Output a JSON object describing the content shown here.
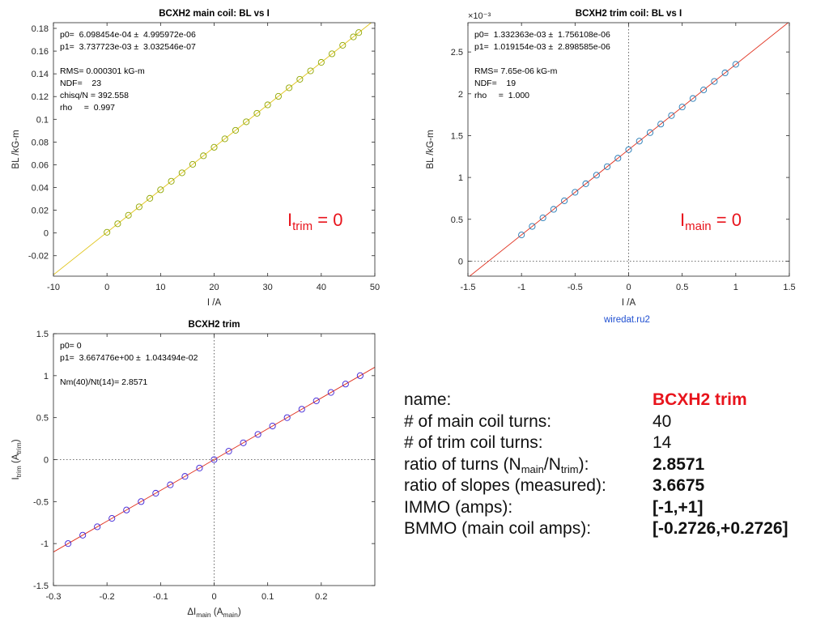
{
  "colors": {
    "yellow_fit": "#e0c419",
    "red_fit": "#e0301e",
    "blue_marker": "#1f77b4",
    "violet_marker": "#3a1fd6",
    "red_text": "#e8141c",
    "link_blue": "#1f4fd1"
  },
  "chart_data": [
    {
      "type": "scatter",
      "title": "BCXH2 main coil: BL vs I",
      "xlabel": "I /A",
      "ylabel": "BL /kG-m",
      "xlim": [
        -10,
        50
      ],
      "ylim": [
        -0.038,
        0.185
      ],
      "xticks": [
        -10,
        0,
        10,
        20,
        30,
        40,
        50
      ],
      "yticks": [
        -0.02,
        0,
        0.02,
        0.04,
        0.06,
        0.08,
        0.1,
        0.12,
        0.14,
        0.16,
        0.18
      ],
      "grid": false,
      "exponent_label": "",
      "show_zero_lines": false,
      "annotation_lines": [
        "p0=  6.098454e-04 ±  4.995972e-06",
        "p1=  3.737723e-03 ±  3.032546e-07",
        "",
        "RMS= 0.000301 kG-m",
        "NDF=    23",
        "chisq/N = 392.558",
        "rho     =  0.997"
      ],
      "big_label": {
        "main": "I",
        "sub": "trim",
        "rest": " = 0"
      },
      "fit": {
        "p0": 0.0006098454,
        "p1": 0.003737723,
        "color": "#e0c419"
      },
      "marker_color": "#8fa600",
      "x": [
        0,
        2,
        4,
        6,
        8,
        10,
        12,
        14,
        16,
        18,
        20,
        22,
        24,
        26,
        28,
        30,
        32,
        34,
        36,
        38,
        40,
        42,
        44,
        46,
        47
      ],
      "y": [
        0.0006,
        0.0081,
        0.0156,
        0.023,
        0.0305,
        0.038,
        0.0455,
        0.0529,
        0.0604,
        0.0679,
        0.0754,
        0.0828,
        0.0903,
        0.0978,
        0.1053,
        0.1127,
        0.1202,
        0.1277,
        0.1352,
        0.1426,
        0.1501,
        0.1576,
        0.1651,
        0.1725,
        0.1763
      ]
    },
    {
      "type": "scatter",
      "title": "BCXH2 trim coil: BL vs I",
      "xlabel": "I /A",
      "ylabel": "BL /kG-m",
      "xlim": [
        -1.5,
        1.5
      ],
      "ylim": [
        -0.18,
        2.85
      ],
      "xticks": [
        -1.5,
        -1,
        -0.5,
        0,
        0.5,
        1,
        1.5
      ],
      "yticks": [
        0,
        0.5,
        1,
        1.5,
        2,
        2.5
      ],
      "grid": false,
      "exponent_label": "×10⁻³",
      "show_zero_lines": true,
      "annotation_lines": [
        "p0=  1.332363e-03 ±  1.756108e-06",
        "p1=  1.019154e-03 ±  2.898585e-06",
        "",
        "RMS= 7.65e-06 kG-m",
        "NDF=    19",
        "rho     =  1.000"
      ],
      "big_label": {
        "main": "I",
        "sub": "main",
        "rest": " = 0"
      },
      "fit": {
        "p0": 1.332363,
        "p1": 1.019154,
        "color": "#e0301e"
      },
      "marker_color": "#1f77b4",
      "x": [
        -1,
        -0.9,
        -0.8,
        -0.7,
        -0.6,
        -0.5,
        -0.4,
        -0.3,
        -0.2,
        -0.1,
        0,
        0.1,
        0.2,
        0.3,
        0.4,
        0.5,
        0.6,
        0.7,
        0.8,
        0.9,
        1
      ],
      "y": [
        0.313,
        0.415,
        0.517,
        0.619,
        0.721,
        0.823,
        0.925,
        1.027,
        1.129,
        1.23,
        1.332,
        1.434,
        1.536,
        1.638,
        1.74,
        1.842,
        1.944,
        2.046,
        2.148,
        2.25,
        2.352
      ]
    },
    {
      "type": "scatter",
      "title": "BCXH2 trim",
      "xlabel": "ΔI_main (A_main)",
      "ylabel": "I_trim (A_trim)",
      "xlim": [
        -0.3,
        0.3
      ],
      "ylim": [
        -1.5,
        1.5
      ],
      "xticks": [
        -0.3,
        -0.2,
        -0.1,
        0,
        0.1,
        0.2
      ],
      "yticks": [
        -1.5,
        -1,
        -0.5,
        0,
        0.5,
        1,
        1.5
      ],
      "grid": false,
      "exponent_label": "",
      "show_zero_lines": true,
      "annotation_lines": [
        "p0= 0",
        "p1=  3.667476e+00 ±  1.043494e-02",
        "",
        "Nm(40)/Nt(14)= 2.8571"
      ],
      "big_label": null,
      "fit": {
        "p0": 0,
        "p1": 3.667476,
        "color": "#e0301e"
      },
      "marker_color": "#3a1fd6",
      "x": [
        -0.2726,
        -0.2453,
        -0.2181,
        -0.1908,
        -0.1636,
        -0.1363,
        -0.109,
        -0.0818,
        -0.0545,
        -0.0273,
        0,
        0.0273,
        0.0545,
        0.0818,
        0.109,
        0.1363,
        0.1636,
        0.1908,
        0.2181,
        0.2453,
        0.2726
      ],
      "y": [
        -1,
        -0.9,
        -0.8,
        -0.7,
        -0.6,
        -0.5,
        -0.4,
        -0.3,
        -0.2,
        -0.1,
        0,
        0.1,
        0.2,
        0.3,
        0.4,
        0.5,
        0.6,
        0.7,
        0.8,
        0.9,
        1
      ]
    }
  ],
  "link_text": "wiredat.ru2",
  "info": {
    "name_label": "name:",
    "name_value": "BCXH2 trim",
    "main_turns_label": "# of main coil turns:",
    "main_turns_value": "40",
    "trim_turns_label": "# of trim coil turns:",
    "trim_turns_value": "14",
    "ratio_turns_label_a": "ratio of turns (N",
    "ratio_turns_sub1": "main",
    "ratio_turns_label_b": "/N",
    "ratio_turns_sub2": "trim",
    "ratio_turns_label_c": "):",
    "ratio_turns_value": "2.8571",
    "ratio_slopes_label": "ratio of slopes (measured):",
    "ratio_slopes_value": "3.6675",
    "immo_label": "IMMO (amps):",
    "immo_value": "[-1,+1]",
    "bmmo_label": "BMMO (main coil amps):",
    "bmmo_value": "[-0.2726,+0.2726]"
  }
}
